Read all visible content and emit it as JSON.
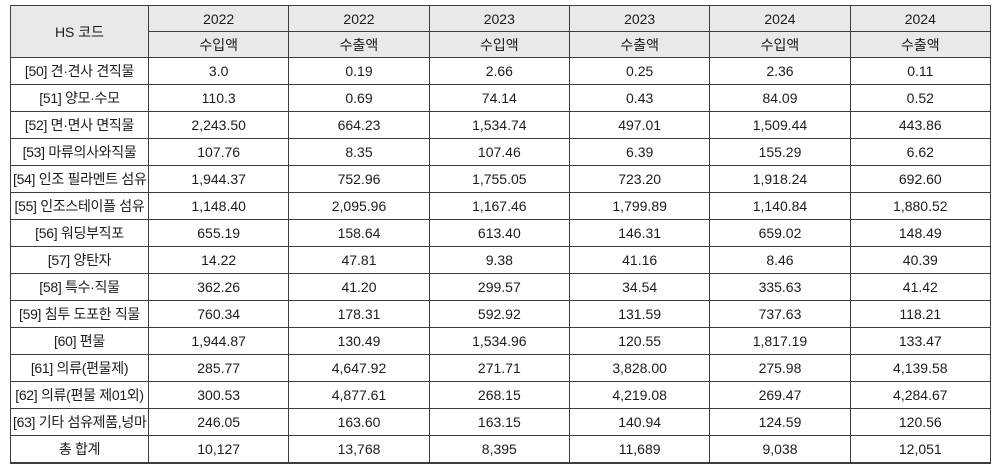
{
  "chart_data": {
    "type": "table",
    "corner_header": "HS 코드",
    "year_headers": [
      "2022",
      "2022",
      "2023",
      "2023",
      "2024",
      "2024"
    ],
    "measure_headers": [
      "수입액",
      "수출액",
      "수입액",
      "수출액",
      "수입액",
      "수출액"
    ],
    "rows": [
      {
        "label": "[50] 견·견사 견직물",
        "values": [
          "3.0",
          "0.19",
          "2.66",
          "0.25",
          "2.36",
          "0.11"
        ]
      },
      {
        "label": "[51] 양모·수모",
        "values": [
          "110.3",
          "0.69",
          "74.14",
          "0.43",
          "84.09",
          "0.52"
        ]
      },
      {
        "label": "[52] 면·면사 면직물",
        "values": [
          "2,243.50",
          "664.23",
          "1,534.74",
          "497.01",
          "1,509.44",
          "443.86"
        ]
      },
      {
        "label": "[53] 마류의사와직물",
        "values": [
          "107.76",
          "8.35",
          "107.46",
          "6.39",
          "155.29",
          "6.62"
        ]
      },
      {
        "label": "[54] 인조 필라멘트 섬유",
        "values": [
          "1,944.37",
          "752.96",
          "1,755.05",
          "723.20",
          "1,918.24",
          "692.60"
        ]
      },
      {
        "label": "[55] 인조스테이플 섬유",
        "values": [
          "1,148.40",
          "2,095.96",
          "1,167.46",
          "1,799.89",
          "1,140.84",
          "1,880.52"
        ]
      },
      {
        "label": "[56] 워딩부직포",
        "values": [
          "655.19",
          "158.64",
          "613.40",
          "146.31",
          "659.02",
          "148.49"
        ]
      },
      {
        "label": "[57] 양탄자",
        "values": [
          "14.22",
          "47.81",
          "9.38",
          "41.16",
          "8.46",
          "40.39"
        ]
      },
      {
        "label": "[58] 특수·직물",
        "values": [
          "362.26",
          "41.20",
          "299.57",
          "34.54",
          "335.63",
          "41.42"
        ]
      },
      {
        "label": "[59] 침투 도포한 직물",
        "values": [
          "760.34",
          "178.31",
          "592.92",
          "131.59",
          "737.63",
          "118.21"
        ]
      },
      {
        "label": "[60] 편물",
        "values": [
          "1,944.87",
          "130.49",
          "1,534.96",
          "120.55",
          "1,817.19",
          "133.47"
        ]
      },
      {
        "label": "[61] 의류(편물제)",
        "values": [
          "285.77",
          "4,647.92",
          "271.71",
          "3,828.00",
          "275.98",
          "4,139.58"
        ]
      },
      {
        "label": "[62] 의류(편물 제01외)",
        "values": [
          "300.53",
          "4,877.61",
          "268.15",
          "4,219.08",
          "269.47",
          "4,284.67"
        ]
      },
      {
        "label": "[63] 기타 섬유제품,넝마",
        "values": [
          "246.05",
          "163.60",
          "163.15",
          "140.94",
          "124.59",
          "120.56"
        ]
      },
      {
        "label": "총 합계",
        "values": [
          "10,127",
          "13,768",
          "8,395",
          "11,689",
          "9,038",
          "12,051"
        ],
        "is_total": true
      }
    ],
    "colors": {
      "header_bg": "#e9e9e5",
      "border": "#3d3d3d",
      "text": "#1c1c1c",
      "row_bg": "#ffffff"
    }
  }
}
